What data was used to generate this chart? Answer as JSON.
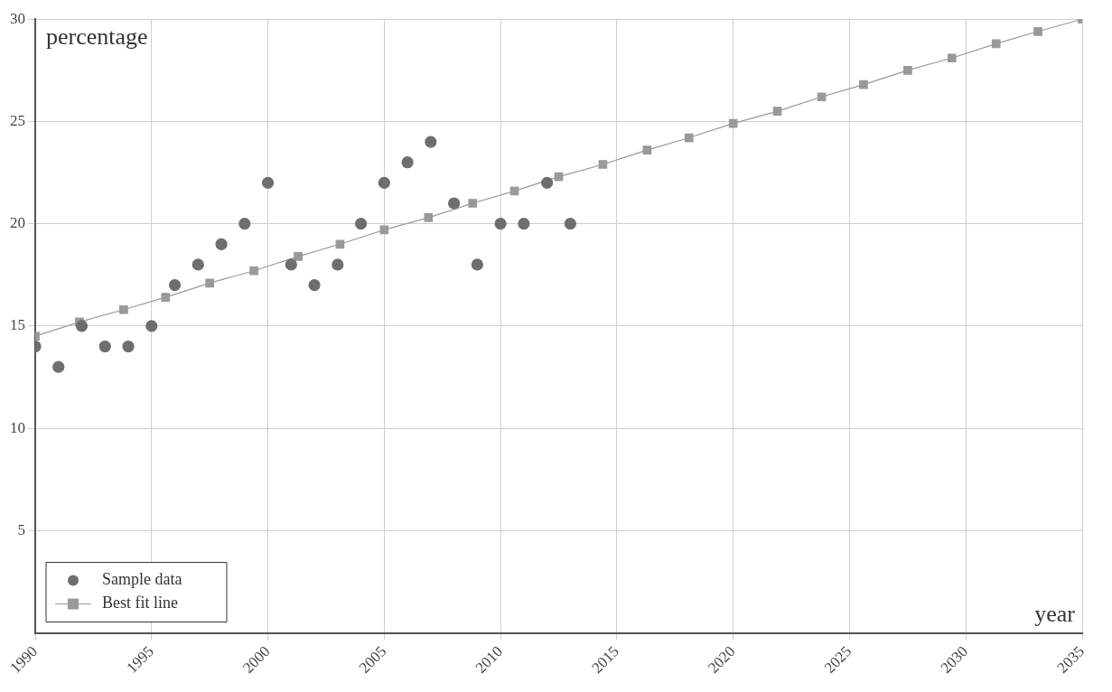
{
  "chart_data": {
    "type": "scatter",
    "xlabel": "year",
    "ylabel": "percentage",
    "xlim": [
      1990,
      2035
    ],
    "xticks": [
      1990,
      1995,
      2000,
      2005,
      2010,
      2015,
      2020,
      2025,
      2030,
      2035
    ],
    "ylim": [
      0,
      30
    ],
    "yticks": [
      5,
      10,
      15,
      20,
      25,
      30
    ],
    "grid": true,
    "legend": "bottom left",
    "series": [
      {
        "name": "Sample data",
        "marker": "circle",
        "color": "#6e6e6e",
        "x": [
          1990,
          1991,
          1992,
          1993,
          1994,
          1995,
          1996,
          1997,
          1998,
          1999,
          2000,
          2001,
          2002,
          2003,
          2004,
          2005,
          2006,
          2007,
          2008,
          2009,
          2010,
          2011,
          2012,
          2013
        ],
        "values": [
          14,
          13,
          15,
          14,
          14,
          15,
          17,
          18,
          19,
          20,
          22,
          18,
          17,
          18,
          20,
          22,
          23,
          24,
          21,
          18,
          20,
          20,
          22,
          20
        ]
      },
      {
        "name": "Best fit line",
        "type": "line",
        "marker": "square",
        "line_style": "solid",
        "color": "#999999",
        "x": [
          1990,
          1991.9,
          1993.8,
          1995.6,
          1997.5,
          1999.4,
          2001.3,
          2003.1,
          2005,
          2006.9,
          2008.8,
          2010.6,
          2012.5,
          2014.4,
          2016.3,
          2018.1,
          2020,
          2021.9,
          2023.8,
          2025.6,
          2027.5,
          2029.4,
          2031.3,
          2033.1,
          2035
        ],
        "values": [
          14.5,
          15.2,
          15.8,
          16.4,
          17.1,
          17.7,
          18.4,
          19,
          19.7,
          20.3,
          21,
          21.6,
          22.3,
          22.9,
          23.6,
          24.2,
          24.9,
          25.5,
          26.2,
          26.8,
          27.5,
          28.1,
          28.8,
          29.4,
          30
        ]
      }
    ]
  }
}
